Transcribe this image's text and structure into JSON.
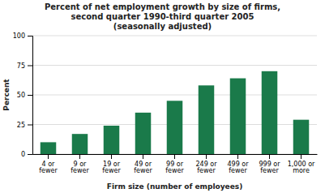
{
  "chart_data": {
    "type": "bar",
    "title": "Percent of net employment growth by size of firms,\nsecond quarter 1990-third quarter 2005\n(seasonally adjusted)",
    "xlabel": "Firm size (number of employees)",
    "ylabel": "Percent",
    "categories": [
      "4 or\nfewer",
      "9 or\nfewer",
      "19 or\nfewer",
      "49 or\nfewer",
      "99 or\nfewer",
      "249 or\nfewer",
      "499 or\nfewer",
      "999 or\nfewer",
      "1,000 or\nmore"
    ],
    "values": [
      10,
      17,
      24,
      35,
      45,
      58,
      64,
      70,
      29
    ],
    "color": "#1a7a4a",
    "ylim": [
      0,
      100
    ],
    "yticks": [
      0,
      25,
      50,
      75,
      100
    ],
    "grid": true
  }
}
